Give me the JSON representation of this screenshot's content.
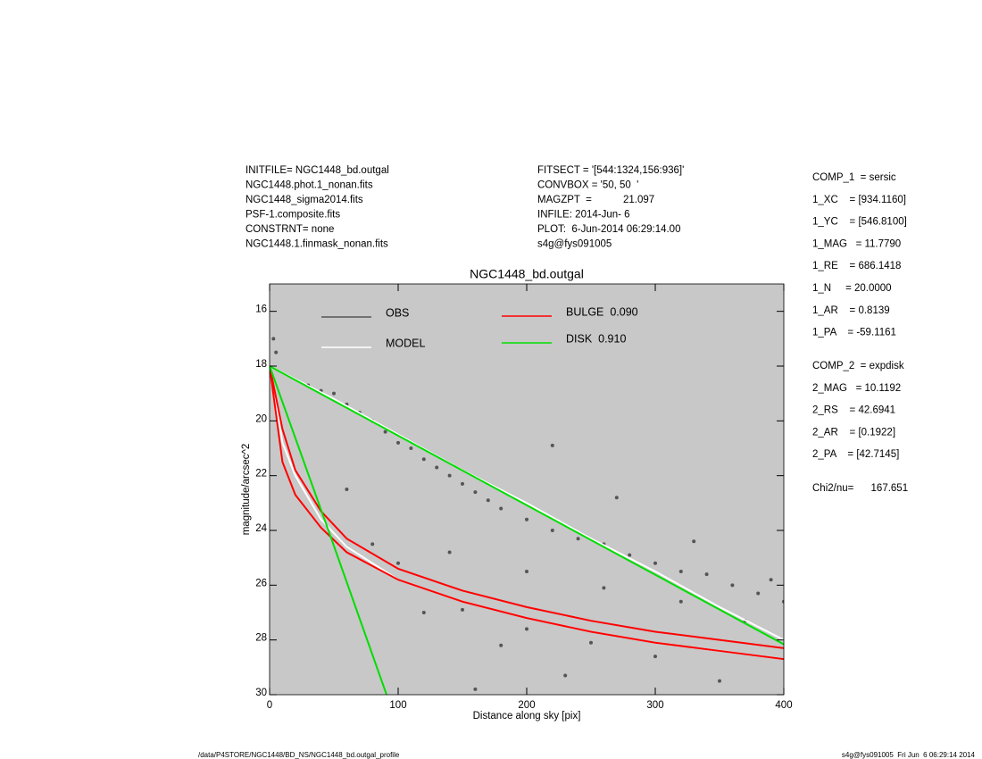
{
  "header": {
    "left": [
      "INITFILE= NGC1448_bd.outgal",
      "NGC1448.phot.1_nonan.fits",
      "NGC1448_sigma2014.fits",
      "PSF-1.composite.fits",
      "CONSTRNT= none",
      "NGC1448.1.finmask_nonan.fits"
    ],
    "middle": [
      "FITSECT = '[544:1324,156:936]'",
      "CONVBOX = '50, 50  '",
      "MAGZPT  =           21.097",
      "INFILE: 2014-Jun- 6",
      "PLOT:  6-Jun-2014 06:29:14.00",
      "s4g@fys091005"
    ]
  },
  "params": {
    "comp1": [
      "COMP_1  = sersic",
      "1_XC    = [934.1160]",
      "1_YC    = [546.8100]",
      "1_MAG   = 11.7790",
      "1_RE    = 686.1418",
      "1_N     = 20.0000",
      "1_AR    = 0.8139",
      "1_PA    = -59.1161"
    ],
    "comp2": [
      "COMP_2  = expdisk",
      "2_MAG   = 10.1192",
      "2_RS    = 42.6941",
      "2_AR    = [0.1922]",
      "2_PA    = [42.7145]"
    ],
    "chi": "Chi2/nu=      167.651"
  },
  "footer": {
    "left": "/data/P4STORE/NGC1448/BD_NS/NGC1448_bd.outgal_profile",
    "right": "s4g@fys091005  Fri Jun  6 06:29:14 2014"
  },
  "chart_data": {
    "type": "scatter",
    "title": "NGC1448_bd.outgal",
    "xlabel": "Distance along sky [pix]",
    "ylabel": "magnitude/arcsec^2",
    "xlim": [
      0,
      400
    ],
    "xticks": [
      0,
      100,
      200,
      300,
      400
    ],
    "ylim": [
      15,
      30
    ],
    "y_reversed": true,
    "yticks": [
      16,
      18,
      20,
      22,
      24,
      26,
      28,
      30
    ],
    "background": "#c8c8c8",
    "series": [
      {
        "name": "OBS",
        "color": "#555555",
        "kind": "scatter",
        "x": [
          3,
          5,
          30,
          40,
          50,
          60,
          70,
          80,
          90,
          100,
          110,
          120,
          130,
          140,
          150,
          160,
          170,
          180,
          200,
          220,
          220,
          240,
          260,
          280,
          300,
          320,
          340,
          360,
          380,
          400,
          330,
          390,
          60,
          100,
          150,
          200,
          250,
          300,
          120,
          180,
          230,
          350,
          80,
          140,
          200,
          260,
          320,
          370,
          270,
          160
        ],
        "values": [
          17.0,
          17.5,
          18.7,
          18.9,
          19.0,
          19.4,
          19.7,
          20.0,
          20.4,
          20.8,
          21.0,
          21.4,
          21.7,
          22.0,
          22.3,
          22.6,
          22.9,
          23.2,
          23.6,
          20.9,
          24.0,
          24.3,
          24.5,
          24.9,
          25.2,
          25.5,
          25.6,
          26.0,
          26.3,
          26.6,
          24.4,
          25.8,
          22.5,
          25.2,
          26.9,
          27.6,
          28.1,
          28.6,
          27.0,
          28.2,
          29.3,
          29.5,
          24.5,
          24.8,
          25.5,
          26.1,
          26.6,
          27.3,
          22.8,
          29.8
        ]
      },
      {
        "name": "MODEL",
        "color": "#ffffff",
        "kind": "band",
        "edges": [
          {
            "x": [
              0,
              50,
              100,
              150,
              200,
              250,
              300,
              350,
              400
            ],
            "values": [
              18,
              19.2,
              20.5,
              21.8,
              23.0,
              24.3,
              25.5,
              26.8,
              28.0
            ]
          },
          {
            "x": [
              0,
              10,
              20,
              40,
              60,
              100,
              150,
              200,
              250,
              300,
              350,
              400
            ],
            "values": [
              18,
              20.8,
              22.0,
              23.6,
              24.6,
              25.8,
              26.6,
              27.2,
              27.7,
              28.1,
              28.4,
              28.7
            ]
          }
        ]
      },
      {
        "name": "BULGE  0.090",
        "color": "#ff0000",
        "kind": "band",
        "edges": [
          {
            "x": [
              0,
              10,
              20,
              40,
              60,
              100,
              150,
              200,
              250,
              300,
              350,
              400
            ],
            "values": [
              18,
              20.3,
              21.8,
              23.3,
              24.3,
              25.4,
              26.2,
              26.8,
              27.3,
              27.7,
              28.0,
              28.3
            ]
          },
          {
            "x": [
              0,
              10,
              20,
              40,
              60,
              100,
              150,
              200,
              250,
              300,
              350,
              400
            ],
            "values": [
              18,
              21.5,
              22.7,
              23.9,
              24.8,
              25.8,
              26.6,
              27.2,
              27.7,
              28.1,
              28.4,
              28.7
            ]
          }
        ]
      },
      {
        "name": "DISK  0.910",
        "color": "#00dd00",
        "kind": "band",
        "edges": [
          {
            "x": [
              0,
              50,
              100,
              150,
              200,
              250,
              300,
              350,
              400
            ],
            "values": [
              18,
              19.27,
              20.54,
              21.81,
              23.08,
              24.35,
              25.62,
              26.89,
              28.16
            ]
          },
          {
            "x": [
              0,
              45,
              91
            ],
            "values": [
              18,
              23.9,
              30
            ]
          }
        ]
      }
    ]
  }
}
